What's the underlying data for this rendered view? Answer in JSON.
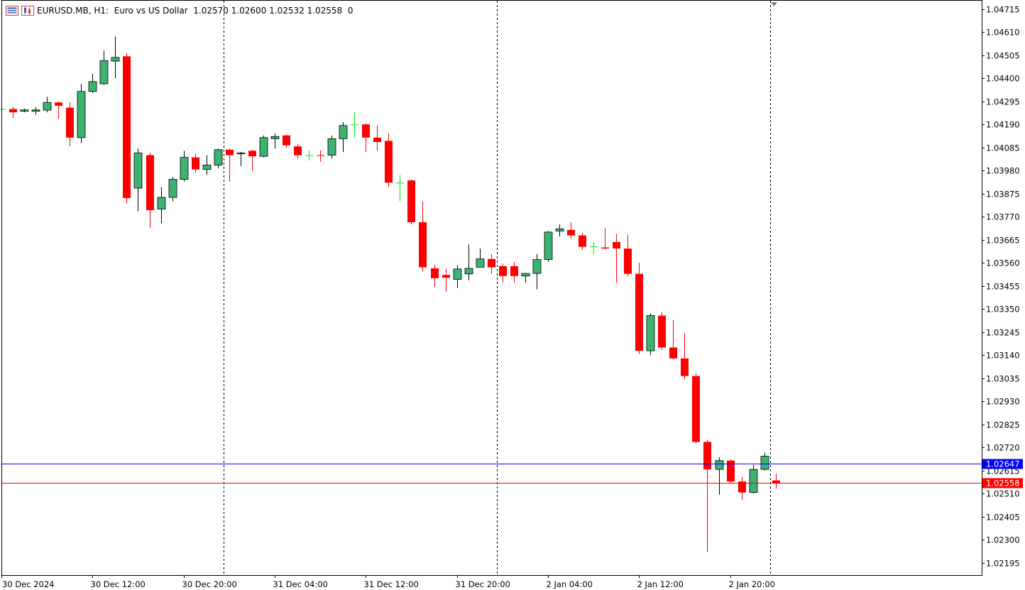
{
  "header": {
    "symbol_line": "EURUSD.MB, H1:  Euro vs US Dollar  1.02570 1.02600 1.02532 1.02558  0"
  },
  "colors": {
    "bull": "#3cb371",
    "bear": "#ff0000",
    "doji": "#00ee00",
    "ask_line": "#0000ff",
    "bid_line": "#ff0000",
    "background": "#ffffff",
    "grid": "#000000"
  },
  "chart_data": {
    "type": "candlestick",
    "title": "EURUSD.MB, H1:  Euro vs US Dollar",
    "ylim": [
      1.02139,
      1.04753
    ],
    "y_ticks": [
      "1.04715",
      "1.04610",
      "1.04505",
      "1.04400",
      "1.04295",
      "1.04190",
      "1.04085",
      "1.03980",
      "1.03875",
      "1.03770",
      "1.03665",
      "1.03560",
      "1.03455",
      "1.03350",
      "1.03245",
      "1.03140",
      "1.03035",
      "1.02930",
      "1.02825",
      "1.02720",
      "1.02615",
      "1.02510",
      "1.02405",
      "1.02300",
      "1.02195"
    ],
    "x_labels": [
      {
        "label": "30 Dec 2024",
        "bar": 0
      },
      {
        "label": "30 Dec 12:00",
        "bar": 8
      },
      {
        "label": "30 Dec 20:00",
        "bar": 16
      },
      {
        "label": "31 Dec 04:00",
        "bar": 24
      },
      {
        "label": "31 Dec 12:00",
        "bar": 32
      },
      {
        "label": "31 Dec 20:00",
        "bar": 40
      },
      {
        "label": "2 Jan 04:00",
        "bar": 48
      },
      {
        "label": "2 Jan 12:00",
        "bar": 56
      },
      {
        "label": "2 Jan 20:00",
        "bar": 64
      }
    ],
    "period_separators": [
      19.5,
      43.5,
      67.5
    ],
    "current_ask": "1.02647",
    "current_bid": "1.02558",
    "ask_value": 1.02647,
    "bid_value": 1.02558,
    "ohlc": [
      {
        "o": 1.0426,
        "h": 1.04262,
        "l": 1.04258,
        "c": 1.0426
      },
      {
        "o": 1.0426,
        "h": 1.0427,
        "l": 1.0422,
        "c": 1.04245
      },
      {
        "o": 1.0425,
        "h": 1.04262,
        "l": 1.04245,
        "c": 1.04256
      },
      {
        "o": 1.0425,
        "h": 1.04268,
        "l": 1.04235,
        "c": 1.04256
      },
      {
        "o": 1.04255,
        "h": 1.04315,
        "l": 1.04245,
        "c": 1.0429
      },
      {
        "o": 1.0429,
        "h": 1.04295,
        "l": 1.04215,
        "c": 1.04275
      },
      {
        "o": 1.04266,
        "h": 1.0429,
        "l": 1.0409,
        "c": 1.0413
      },
      {
        "o": 1.0413,
        "h": 1.04375,
        "l": 1.04105,
        "c": 1.0434
      },
      {
        "o": 1.0434,
        "h": 1.0442,
        "l": 1.04333,
        "c": 1.04385
      },
      {
        "o": 1.04375,
        "h": 1.04525,
        "l": 1.0437,
        "c": 1.0448
      },
      {
        "o": 1.04478,
        "h": 1.0459,
        "l": 1.044,
        "c": 1.04495
      },
      {
        "o": 1.045,
        "h": 1.04515,
        "l": 1.0383,
        "c": 1.03855
      },
      {
        "o": 1.039,
        "h": 1.0408,
        "l": 1.03795,
        "c": 1.0406
      },
      {
        "o": 1.0405,
        "h": 1.0406,
        "l": 1.0372,
        "c": 1.038
      },
      {
        "o": 1.03805,
        "h": 1.03905,
        "l": 1.0374,
        "c": 1.03858
      },
      {
        "o": 1.03858,
        "h": 1.0395,
        "l": 1.0384,
        "c": 1.0394
      },
      {
        "o": 1.0394,
        "h": 1.0407,
        "l": 1.0393,
        "c": 1.0404
      },
      {
        "o": 1.0404,
        "h": 1.04055,
        "l": 1.0397,
        "c": 1.03985
      },
      {
        "o": 1.03985,
        "h": 1.0405,
        "l": 1.0396,
        "c": 1.04005
      },
      {
        "o": 1.04005,
        "h": 1.0408,
        "l": 1.0399,
        "c": 1.04075
      },
      {
        "o": 1.04075,
        "h": 1.0408,
        "l": 1.0393,
        "c": 1.0405
      },
      {
        "o": 1.04056,
        "h": 1.04065,
        "l": 1.04,
        "c": 1.0406
      },
      {
        "o": 1.0407,
        "h": 1.04075,
        "l": 1.0398,
        "c": 1.04045
      },
      {
        "o": 1.04045,
        "h": 1.0414,
        "l": 1.0404,
        "c": 1.0413
      },
      {
        "o": 1.04125,
        "h": 1.0415,
        "l": 1.0408,
        "c": 1.04135
      },
      {
        "o": 1.0414,
        "h": 1.04143,
        "l": 1.04085,
        "c": 1.04095
      },
      {
        "o": 1.0409,
        "h": 1.041,
        "l": 1.04035,
        "c": 1.0405
      },
      {
        "o": 1.0405,
        "h": 1.04072,
        "l": 1.04025,
        "c": 1.0405
      },
      {
        "o": 1.0405,
        "h": 1.04072,
        "l": 1.0402,
        "c": 1.04047
      },
      {
        "o": 1.0405,
        "h": 1.0414,
        "l": 1.04035,
        "c": 1.04125
      },
      {
        "o": 1.04125,
        "h": 1.042,
        "l": 1.04065,
        "c": 1.04185
      },
      {
        "o": 1.0419,
        "h": 1.04245,
        "l": 1.0413,
        "c": 1.0419
      },
      {
        "o": 1.0419,
        "h": 1.04195,
        "l": 1.04065,
        "c": 1.0413
      },
      {
        "o": 1.0413,
        "h": 1.04185,
        "l": 1.0407,
        "c": 1.0411
      },
      {
        "o": 1.04115,
        "h": 1.0415,
        "l": 1.03905,
        "c": 1.03925
      },
      {
        "o": 1.03925,
        "h": 1.0396,
        "l": 1.0384,
        "c": 1.03925
      },
      {
        "o": 1.03935,
        "h": 1.0394,
        "l": 1.03735,
        "c": 1.03745
      },
      {
        "o": 1.03745,
        "h": 1.0384,
        "l": 1.0352,
        "c": 1.0354
      },
      {
        "o": 1.03535,
        "h": 1.0355,
        "l": 1.0345,
        "c": 1.0349
      },
      {
        "o": 1.03505,
        "h": 1.03532,
        "l": 1.0343,
        "c": 1.03492
      },
      {
        "o": 1.03485,
        "h": 1.0355,
        "l": 1.03445,
        "c": 1.03532
      },
      {
        "o": 1.0351,
        "h": 1.03644,
        "l": 1.0348,
        "c": 1.03535
      },
      {
        "o": 1.0354,
        "h": 1.03625,
        "l": 1.0354,
        "c": 1.03578
      },
      {
        "o": 1.03578,
        "h": 1.036,
        "l": 1.0351,
        "c": 1.0354
      },
      {
        "o": 1.03545,
        "h": 1.03555,
        "l": 1.0347,
        "c": 1.035
      },
      {
        "o": 1.03545,
        "h": 1.03565,
        "l": 1.0347,
        "c": 1.035
      },
      {
        "o": 1.035,
        "h": 1.0351,
        "l": 1.0347,
        "c": 1.03512
      },
      {
        "o": 1.03512,
        "h": 1.036,
        "l": 1.0344,
        "c": 1.03575
      },
      {
        "o": 1.03575,
        "h": 1.03705,
        "l": 1.03565,
        "c": 1.037
      },
      {
        "o": 1.03705,
        "h": 1.03735,
        "l": 1.0368,
        "c": 1.03715
      },
      {
        "o": 1.0371,
        "h": 1.03745,
        "l": 1.03668,
        "c": 1.03685
      },
      {
        "o": 1.03685,
        "h": 1.03697,
        "l": 1.0362,
        "c": 1.03633
      },
      {
        "o": 1.03635,
        "h": 1.03655,
        "l": 1.03598,
        "c": 1.03635
      },
      {
        "o": 1.0363,
        "h": 1.0372,
        "l": 1.0362,
        "c": 1.03625
      },
      {
        "o": 1.03655,
        "h": 1.03692,
        "l": 1.0347,
        "c": 1.03625
      },
      {
        "o": 1.03625,
        "h": 1.03688,
        "l": 1.035,
        "c": 1.0351
      },
      {
        "o": 1.0351,
        "h": 1.0356,
        "l": 1.03145,
        "c": 1.0316
      },
      {
        "o": 1.0316,
        "h": 1.0333,
        "l": 1.0314,
        "c": 1.0332
      },
      {
        "o": 1.0332,
        "h": 1.03335,
        "l": 1.03165,
        "c": 1.03175
      },
      {
        "o": 1.03175,
        "h": 1.033,
        "l": 1.0312,
        "c": 1.03125
      },
      {
        "o": 1.03125,
        "h": 1.0324,
        "l": 1.0303,
        "c": 1.03045
      },
      {
        "o": 1.03045,
        "h": 1.03055,
        "l": 1.0274,
        "c": 1.02745
      },
      {
        "o": 1.02745,
        "h": 1.02755,
        "l": 1.02245,
        "c": 1.0262
      },
      {
        "o": 1.0262,
        "h": 1.02675,
        "l": 1.02505,
        "c": 1.0266
      },
      {
        "o": 1.0266,
        "h": 1.02665,
        "l": 1.0256,
        "c": 1.02565
      },
      {
        "o": 1.02565,
        "h": 1.02585,
        "l": 1.0248,
        "c": 1.02515
      },
      {
        "o": 1.02515,
        "h": 1.0264,
        "l": 1.0251,
        "c": 1.0262
      },
      {
        "o": 1.0262,
        "h": 1.02695,
        "l": 1.02615,
        "c": 1.0268
      },
      {
        "o": 1.0257,
        "h": 1.026,
        "l": 1.02532,
        "c": 1.02558
      }
    ]
  }
}
